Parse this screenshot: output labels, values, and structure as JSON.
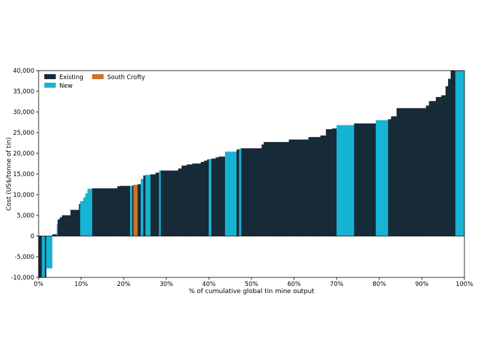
{
  "chart_data": {
    "type": "bar",
    "subtype": "cost-curve",
    "title": "",
    "xlabel": "% of cumulative global tin mine output",
    "ylabel": "Cost (US$/tonne of tin)",
    "xlim": [
      0,
      100
    ],
    "ylim": [
      -10000,
      40000
    ],
    "x_ticks": [
      0,
      10,
      20,
      30,
      40,
      50,
      60,
      70,
      80,
      90,
      100
    ],
    "x_tick_labels": [
      "0%",
      "10%",
      "20%",
      "30%",
      "40%",
      "50%",
      "60%",
      "70%",
      "80%",
      "90%",
      "100%"
    ],
    "y_ticks": [
      -10000,
      -5000,
      0,
      5000,
      10000,
      15000,
      20000,
      25000,
      30000,
      35000,
      40000
    ],
    "y_tick_labels": [
      "-10,000",
      "-5,000",
      "0",
      "5,000",
      "10,000",
      "15,000",
      "20,000",
      "25,000",
      "30,000",
      "35,000",
      "40,000"
    ],
    "grid": false,
    "legend": {
      "placement": "top-left",
      "entries": [
        {
          "label": "Existing",
          "color": "#172a38"
        },
        {
          "label": "New",
          "color": "#16b4d4"
        },
        {
          "label": "South Crofty",
          "color": "#cf7222"
        }
      ]
    },
    "colors": {
      "existing": "#172a38",
      "new": "#16b4d4",
      "south_crofty": "#cf7222"
    },
    "bars": [
      {
        "x0": 0.0,
        "x1": 0.8,
        "value": -10000,
        "category": "existing"
      },
      {
        "x0": 0.8,
        "x1": 1.5,
        "value": -10000,
        "category": "new"
      },
      {
        "x0": 1.5,
        "x1": 1.8,
        "value": -10000,
        "category": "existing"
      },
      {
        "x0": 1.8,
        "x1": 3.2,
        "value": -7800,
        "category": "new"
      },
      {
        "x0": 3.2,
        "x1": 4.3,
        "value": 400,
        "category": "existing"
      },
      {
        "x0": 4.3,
        "x1": 4.5,
        "value": 2800,
        "category": "new"
      },
      {
        "x0": 4.5,
        "x1": 5.0,
        "value": 4000,
        "category": "existing"
      },
      {
        "x0": 5.0,
        "x1": 5.5,
        "value": 4500,
        "category": "existing"
      },
      {
        "x0": 5.5,
        "x1": 7.5,
        "value": 5000,
        "category": "existing"
      },
      {
        "x0": 7.5,
        "x1": 9.5,
        "value": 6300,
        "category": "existing"
      },
      {
        "x0": 9.5,
        "x1": 9.8,
        "value": 7700,
        "category": "existing"
      },
      {
        "x0": 9.8,
        "x1": 10.5,
        "value": 8400,
        "category": "new"
      },
      {
        "x0": 10.5,
        "x1": 11.0,
        "value": 9300,
        "category": "new"
      },
      {
        "x0": 11.0,
        "x1": 11.5,
        "value": 10300,
        "category": "new"
      },
      {
        "x0": 11.5,
        "x1": 12.6,
        "value": 11400,
        "category": "new"
      },
      {
        "x0": 12.6,
        "x1": 18.5,
        "value": 11500,
        "category": "existing"
      },
      {
        "x0": 18.5,
        "x1": 19.2,
        "value": 12000,
        "category": "existing"
      },
      {
        "x0": 19.2,
        "x1": 21.5,
        "value": 12100,
        "category": "existing"
      },
      {
        "x0": 21.5,
        "x1": 22.0,
        "value": 12100,
        "category": "new"
      },
      {
        "x0": 22.0,
        "x1": 22.3,
        "value": 12200,
        "category": "existing"
      },
      {
        "x0": 22.3,
        "x1": 23.3,
        "value": 12400,
        "category": "south_crofty"
      },
      {
        "x0": 23.3,
        "x1": 24.0,
        "value": 12500,
        "category": "existing"
      },
      {
        "x0": 24.0,
        "x1": 24.6,
        "value": 13800,
        "category": "new"
      },
      {
        "x0": 24.6,
        "x1": 25.1,
        "value": 14600,
        "category": "existing"
      },
      {
        "x0": 25.1,
        "x1": 26.3,
        "value": 14800,
        "category": "new"
      },
      {
        "x0": 26.3,
        "x1": 27.5,
        "value": 14900,
        "category": "existing"
      },
      {
        "x0": 27.5,
        "x1": 28.3,
        "value": 15300,
        "category": "existing"
      },
      {
        "x0": 28.3,
        "x1": 28.7,
        "value": 15800,
        "category": "new"
      },
      {
        "x0": 28.7,
        "x1": 32.8,
        "value": 15800,
        "category": "existing"
      },
      {
        "x0": 32.8,
        "x1": 33.6,
        "value": 16300,
        "category": "existing"
      },
      {
        "x0": 33.6,
        "x1": 34.8,
        "value": 17000,
        "category": "existing"
      },
      {
        "x0": 34.8,
        "x1": 36.1,
        "value": 17300,
        "category": "existing"
      },
      {
        "x0": 36.1,
        "x1": 38.1,
        "value": 17500,
        "category": "existing"
      },
      {
        "x0": 38.1,
        "x1": 38.9,
        "value": 17900,
        "category": "existing"
      },
      {
        "x0": 38.9,
        "x1": 39.6,
        "value": 18200,
        "category": "existing"
      },
      {
        "x0": 39.6,
        "x1": 40.0,
        "value": 18500,
        "category": "existing"
      },
      {
        "x0": 40.0,
        "x1": 40.6,
        "value": 18600,
        "category": "new"
      },
      {
        "x0": 40.6,
        "x1": 41.6,
        "value": 18700,
        "category": "existing"
      },
      {
        "x0": 41.6,
        "x1": 42.3,
        "value": 19000,
        "category": "existing"
      },
      {
        "x0": 42.3,
        "x1": 43.8,
        "value": 19200,
        "category": "existing"
      },
      {
        "x0": 43.8,
        "x1": 46.5,
        "value": 20400,
        "category": "new"
      },
      {
        "x0": 46.5,
        "x1": 47.1,
        "value": 20900,
        "category": "existing"
      },
      {
        "x0": 47.1,
        "x1": 47.6,
        "value": 21100,
        "category": "new"
      },
      {
        "x0": 47.6,
        "x1": 52.4,
        "value": 21200,
        "category": "existing"
      },
      {
        "x0": 52.4,
        "x1": 52.9,
        "value": 22100,
        "category": "existing"
      },
      {
        "x0": 52.9,
        "x1": 58.8,
        "value": 22700,
        "category": "existing"
      },
      {
        "x0": 58.8,
        "x1": 63.4,
        "value": 23300,
        "category": "existing"
      },
      {
        "x0": 63.4,
        "x1": 66.2,
        "value": 23900,
        "category": "existing"
      },
      {
        "x0": 66.2,
        "x1": 67.5,
        "value": 24300,
        "category": "existing"
      },
      {
        "x0": 67.5,
        "x1": 69.0,
        "value": 25800,
        "category": "existing"
      },
      {
        "x0": 69.0,
        "x1": 70.0,
        "value": 26000,
        "category": "existing"
      },
      {
        "x0": 70.0,
        "x1": 74.1,
        "value": 26800,
        "category": "new"
      },
      {
        "x0": 74.1,
        "x1": 79.2,
        "value": 27200,
        "category": "existing"
      },
      {
        "x0": 79.2,
        "x1": 82.1,
        "value": 28000,
        "category": "new"
      },
      {
        "x0": 82.1,
        "x1": 82.8,
        "value": 28200,
        "category": "existing"
      },
      {
        "x0": 82.8,
        "x1": 84.1,
        "value": 28900,
        "category": "existing"
      },
      {
        "x0": 84.1,
        "x1": 91.0,
        "value": 30900,
        "category": "existing"
      },
      {
        "x0": 91.0,
        "x1": 91.7,
        "value": 31500,
        "category": "existing"
      },
      {
        "x0": 91.7,
        "x1": 93.3,
        "value": 32600,
        "category": "existing"
      },
      {
        "x0": 93.3,
        "x1": 94.6,
        "value": 33600,
        "category": "existing"
      },
      {
        "x0": 94.6,
        "x1": 95.6,
        "value": 34000,
        "category": "existing"
      },
      {
        "x0": 95.6,
        "x1": 96.2,
        "value": 36200,
        "category": "existing"
      },
      {
        "x0": 96.2,
        "x1": 96.8,
        "value": 38000,
        "category": "existing"
      },
      {
        "x0": 96.8,
        "x1": 97.9,
        "value": 40000,
        "category": "existing"
      },
      {
        "x0": 97.9,
        "x1": 100.0,
        "value": 40000,
        "category": "new"
      }
    ]
  }
}
